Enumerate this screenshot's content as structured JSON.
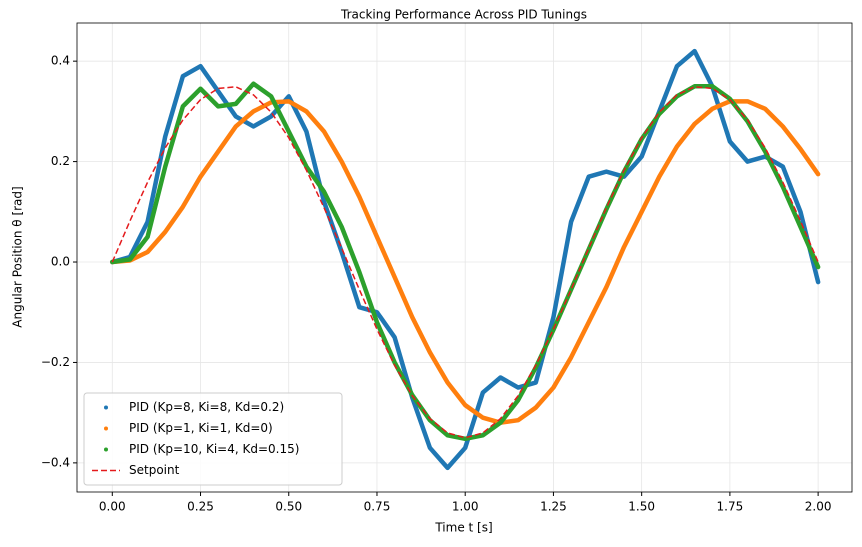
{
  "chart_data": {
    "type": "line",
    "title": "Tracking Performance Across PID Tunings",
    "xlabel": "Time t  [s]",
    "ylabel": "Angular Position θ  [rad]",
    "x": [
      0,
      0.05,
      0.1,
      0.15,
      0.2,
      0.25,
      0.3,
      0.35,
      0.4,
      0.45,
      0.5,
      0.55,
      0.6,
      0.65,
      0.7,
      0.75,
      0.8,
      0.85,
      0.9,
      0.95,
      1.0,
      1.05,
      1.1,
      1.15,
      1.2,
      1.25,
      1.3,
      1.35,
      1.4,
      1.45,
      1.5,
      1.55,
      1.6,
      1.65,
      1.7,
      1.75,
      1.8,
      1.85,
      1.9,
      1.95,
      2.0
    ],
    "series": [
      {
        "name": "PID (Kp=8, Ki=8, Kd=0.2)",
        "color": "#1f77b4",
        "linestyle": "markers",
        "values": [
          0,
          0.01,
          0.08,
          0.25,
          0.37,
          0.39,
          0.34,
          0.29,
          0.27,
          0.29,
          0.33,
          0.26,
          0.12,
          0.02,
          -0.09,
          -0.1,
          -0.15,
          -0.27,
          -0.37,
          -0.41,
          -0.37,
          -0.26,
          -0.23,
          -0.25,
          -0.24,
          -0.11,
          0.08,
          0.17,
          0.18,
          0.17,
          0.21,
          0.3,
          0.39,
          0.42,
          0.35,
          0.24,
          0.2,
          0.21,
          0.19,
          0.1,
          -0.04
        ]
      },
      {
        "name": "PID (Kp=1, Ki=1, Kd=0)",
        "color": "#ff7f0e",
        "linestyle": "markers",
        "values": [
          0,
          0.003,
          0.02,
          0.06,
          0.11,
          0.17,
          0.22,
          0.27,
          0.3,
          0.318,
          0.32,
          0.3,
          0.26,
          0.2,
          0.13,
          0.05,
          -0.03,
          -0.11,
          -0.18,
          -0.24,
          -0.285,
          -0.31,
          -0.32,
          -0.315,
          -0.29,
          -0.25,
          -0.19,
          -0.12,
          -0.05,
          0.03,
          0.1,
          0.17,
          0.23,
          0.275,
          0.305,
          0.32,
          0.32,
          0.305,
          0.27,
          0.225,
          0.175
        ]
      },
      {
        "name": "PID (Kp=10, Ki=4, Kd=0.15)",
        "color": "#2ca02c",
        "linestyle": "markers",
        "values": [
          0,
          0.005,
          0.05,
          0.19,
          0.31,
          0.345,
          0.31,
          0.315,
          0.355,
          0.33,
          0.26,
          0.19,
          0.14,
          0.07,
          -0.02,
          -0.12,
          -0.2,
          -0.265,
          -0.315,
          -0.345,
          -0.352,
          -0.345,
          -0.32,
          -0.275,
          -0.21,
          -0.135,
          -0.055,
          0.025,
          0.105,
          0.18,
          0.245,
          0.295,
          0.33,
          0.35,
          0.35,
          0.325,
          0.28,
          0.22,
          0.15,
          0.07,
          -0.01
        ]
      },
      {
        "name": "Setpoint",
        "color": "#e41a1c",
        "linestyle": "dashed",
        "values": [
          0,
          0.0817,
          0.159,
          0.2273,
          0.283,
          0.3234,
          0.3457,
          0.3489,
          0.3329,
          0.2984,
          0.2475,
          0.1829,
          0.1082,
          0.0275,
          -0.0548,
          -0.1339,
          -0.2057,
          -0.2662,
          -0.3119,
          -0.3403,
          -0.35,
          -0.3403,
          -0.3119,
          -0.2662,
          -0.2057,
          -0.1339,
          -0.0548,
          0.0275,
          0.1082,
          0.1829,
          0.2475,
          0.2984,
          0.3329,
          0.3489,
          0.3457,
          0.3234,
          0.283,
          0.2273,
          0.159,
          0.0817,
          0
        ]
      }
    ],
    "xlim": [
      -0.1,
      2.096
    ],
    "ylim": [
      -0.458,
      0.476
    ],
    "xticks": [
      {
        "value": 0,
        "label": "0.00"
      },
      {
        "value": 0.25,
        "label": "0.25"
      },
      {
        "value": 0.5,
        "label": "0.50"
      },
      {
        "value": 0.75,
        "label": "0.75"
      },
      {
        "value": 1,
        "label": "1.00"
      },
      {
        "value": 1.25,
        "label": "1.25"
      },
      {
        "value": 1.5,
        "label": "1.50"
      },
      {
        "value": 1.75,
        "label": "1.75"
      },
      {
        "value": 2,
        "label": "2.00"
      }
    ],
    "yticks": [
      {
        "value": -0.4,
        "label": "−0.4"
      },
      {
        "value": -0.2,
        "label": "−0.2"
      },
      {
        "value": 0,
        "label": "0.0"
      },
      0.2,
      0.4
    ],
    "grid": true,
    "legend": "lower left"
  }
}
